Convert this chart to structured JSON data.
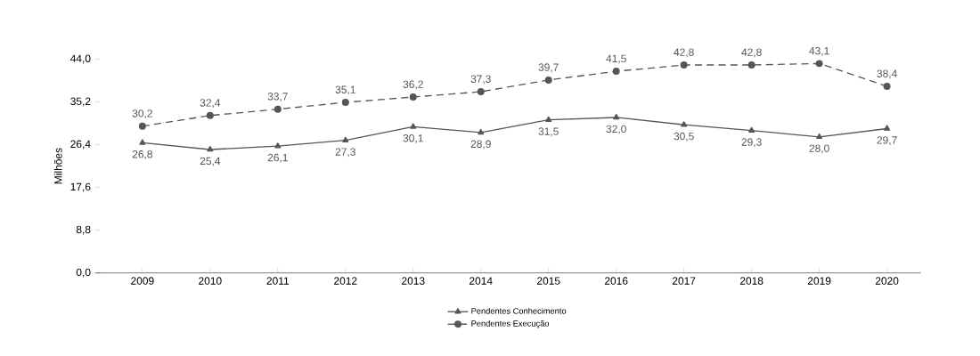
{
  "chart_data": {
    "type": "line",
    "ylabel": "Milhões",
    "categories": [
      "2009",
      "2010",
      "2011",
      "2012",
      "2013",
      "2014",
      "2015",
      "2016",
      "2017",
      "2018",
      "2019",
      "2020"
    ],
    "series": [
      {
        "name": "Pendentes Conhecimento",
        "color": "#555555",
        "marker": "triangle",
        "line_style": "solid",
        "values": [
          26.8,
          25.4,
          26.1,
          27.3,
          30.1,
          28.9,
          31.5,
          32.0,
          30.5,
          29.3,
          28.0,
          29.7
        ],
        "value_labels": [
          "26,8",
          "25,4",
          "26,1",
          "27,3",
          "30,1",
          "28,9",
          "31,5",
          "32,0",
          "30,5",
          "29,3",
          "28,0",
          "29,7"
        ]
      },
      {
        "name": "Pendentes Execução",
        "color": "#555555",
        "marker": "circle",
        "line_style": "dashed",
        "values": [
          30.2,
          32.4,
          33.7,
          35.1,
          36.2,
          37.3,
          39.7,
          41.5,
          42.8,
          42.8,
          43.1,
          38.4
        ],
        "value_labels": [
          "30,2",
          "32,4",
          "33,7",
          "35,1",
          "36,2",
          "37,3",
          "39,7",
          "41,5",
          "42,8",
          "42,8",
          "43,1",
          "38,4"
        ]
      }
    ],
    "ylim": [
      0,
      44
    ],
    "yticks": [
      {
        "value": 0,
        "label": "0,0"
      },
      {
        "value": 8.8,
        "label": "8,8"
      },
      {
        "value": 17.6,
        "label": "17,6"
      },
      {
        "value": 26.4,
        "label": "26,4"
      },
      {
        "value": 35.2,
        "label": "35,2"
      },
      {
        "value": 44,
        "label": "44,0"
      }
    ],
    "legend": "bottom",
    "grid": false
  }
}
